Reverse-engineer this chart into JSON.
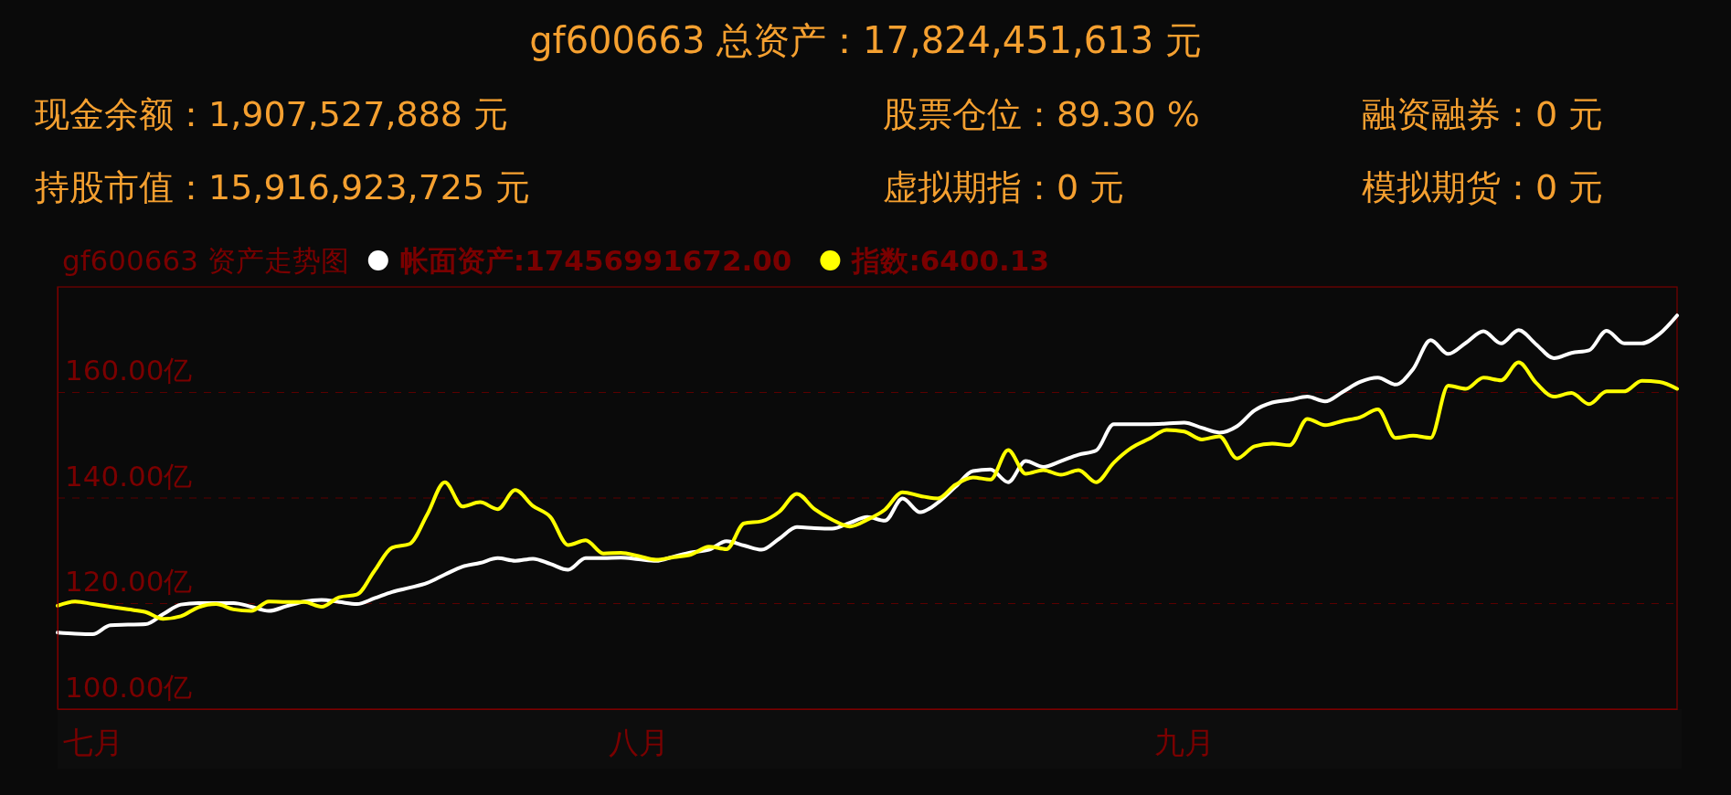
{
  "chart_data": {
    "type": "line",
    "title": "gf600663 总资产：17,824,451,613 元",
    "subtitle": "gf600663 资产走势图",
    "annotations": [
      "现金余额：1,907,527,888 元",
      "股票仓位：89.30 %",
      "融资融券：0 元",
      "持股市值：15,916,923,725 元",
      "虚拟期指：0 元",
      "模拟期货：0 元"
    ],
    "categories": [
      null,
      null,
      "七月",
      null,
      null,
      null,
      null,
      null,
      null,
      null,
      null,
      null,
      null,
      null,
      null,
      null,
      null,
      null,
      null,
      null,
      null,
      null,
      null,
      null,
      null,
      null,
      null,
      null,
      null,
      null,
      null,
      null,
      null,
      "八月",
      null,
      null,
      null,
      null,
      null,
      null,
      null,
      null,
      null,
      null,
      null,
      null,
      null,
      null,
      null,
      null,
      null,
      null,
      null,
      null,
      null,
      null,
      null,
      null,
      null,
      null,
      null,
      null,
      null,
      null,
      "九月",
      null,
      null,
      null,
      null,
      null,
      null,
      null,
      null,
      null,
      null,
      null,
      null,
      null,
      null,
      null,
      null,
      null,
      null,
      null,
      null,
      null,
      null,
      null,
      null,
      null,
      null,
      null,
      null
    ],
    "ylim": [
      100,
      180
    ],
    "yticks": [
      {
        "value": 100,
        "label": "100.00亿"
      },
      {
        "value": 120,
        "label": "120.00亿"
      },
      {
        "value": 140,
        "label": "140.00亿"
      },
      {
        "value": 160,
        "label": "160.00亿"
      }
    ],
    "grid": "y",
    "legend": "top left",
    "line_style": "solid",
    "series": [
      {
        "name": "帐面资产:17456991672.00",
        "color": "#ffffff",
        "values": [
          114.5,
          114.3,
          114.2,
          115.9,
          116.0,
          116.1,
          118.0,
          119.8,
          120.1,
          120.1,
          120.1,
          119.4,
          118.6,
          119.5,
          120.4,
          120.7,
          120.3,
          119.9,
          121.0,
          122.2,
          123.0,
          123.9,
          125.5,
          127.0,
          127.7,
          128.6,
          128.1,
          128.5,
          127.5,
          126.4,
          128.6,
          128.6,
          128.7,
          128.4,
          128.1,
          128.9,
          129.7,
          130.2,
          131.8,
          131.0,
          130.2,
          132.3,
          134.5,
          134.3,
          134.2,
          135.3,
          136.4,
          135.7,
          139.9,
          137.3,
          139.1,
          142.1,
          145.1,
          145.4,
          143.0,
          147.0,
          145.9,
          147.0,
          148.2,
          149.0,
          154.0,
          154.0,
          154.0,
          154.1,
          154.3,
          153.3,
          152.4,
          153.6,
          156.6,
          158.1,
          158.6,
          159.2,
          158.3,
          160.1,
          162.0,
          162.8,
          161.5,
          164.4,
          169.9,
          167.3,
          169.4,
          171.6,
          169.3,
          171.8,
          169.1,
          166.5,
          167.5,
          168.0,
          171.7,
          169.3,
          169.3,
          171.1,
          174.6
        ]
      },
      {
        "name": "指数:6400.13",
        "color": "#ffff00",
        "values": [
          119.6,
          120.4,
          119.9,
          119.4,
          118.9,
          118.4,
          117.1,
          117.6,
          119.3,
          119.9,
          118.9,
          118.6,
          120.4,
          120.3,
          120.3,
          119.4,
          121.2,
          121.7,
          126.2,
          130.6,
          131.3,
          136.9,
          143.0,
          138.4,
          139.2,
          137.9,
          141.5,
          138.5,
          136.4,
          131.1,
          132.0,
          129.5,
          129.6,
          129.0,
          128.3,
          128.8,
          129.3,
          130.8,
          130.3,
          135.2,
          135.6,
          137.4,
          140.8,
          137.9,
          135.9,
          134.6,
          135.9,
          137.8,
          141.1,
          140.4,
          139.9,
          142.5,
          143.9,
          143.5,
          149.1,
          144.6,
          145.3,
          144.4,
          145.3,
          143.0,
          146.7,
          149.5,
          151.2,
          152.9,
          152.6,
          151.1,
          151.7,
          147.5,
          149.8,
          150.3,
          150.0,
          155.0,
          153.8,
          154.6,
          155.3,
          156.8,
          151.4,
          151.8,
          151.4,
          161.3,
          160.7,
          162.8,
          162.3,
          165.7,
          161.8,
          159.2,
          159.9,
          157.8,
          160.2,
          160.2,
          162.2,
          162.0,
          160.7
        ]
      }
    ]
  }
}
